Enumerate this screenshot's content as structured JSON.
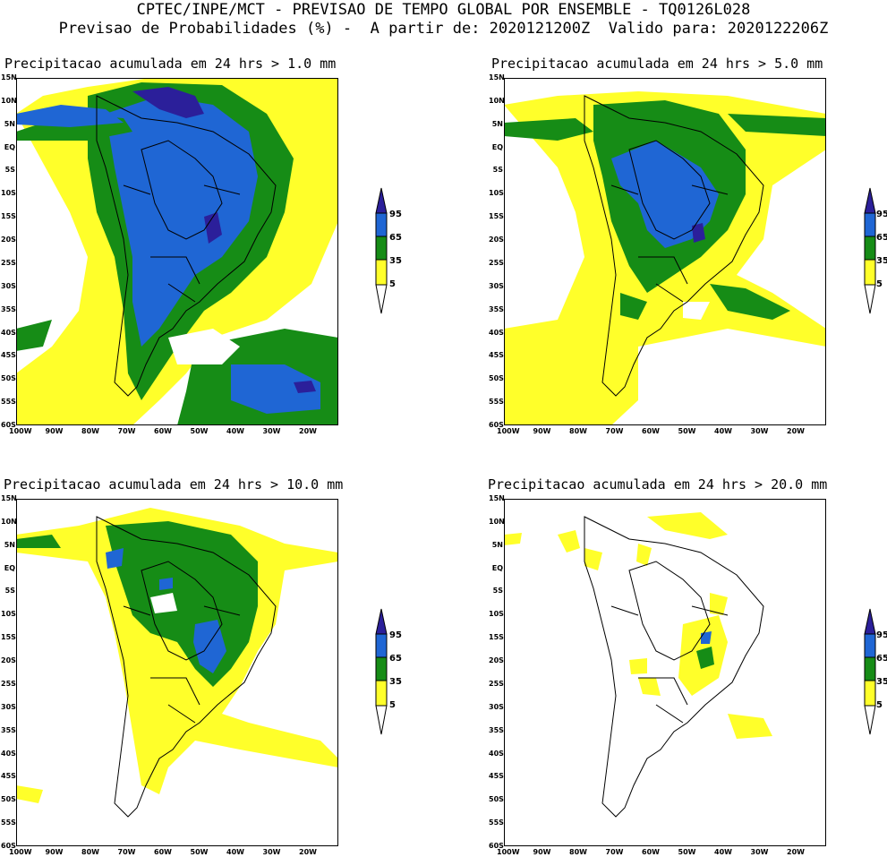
{
  "header": {
    "line1": "CPTEC/INPE/MCT - PREVISAO DE TEMPO GLOBAL POR ENSEMBLE - TQ0126L028",
    "line2": "Previsao de Probabilidades (%) -  A partir de: 2020121200Z  Valido para: 2020122206Z"
  },
  "panels": [
    {
      "title": "Precipitacao acumulada em 24 hrs > 1.0 mm"
    },
    {
      "title": "Precipitacao acumulada em 24 hrs > 5.0 mm"
    },
    {
      "title": "Precipitacao acumulada em 24 hrs > 10.0 mm"
    },
    {
      "title": "Precipitacao acumulada em 24 hrs > 20.0 mm"
    }
  ],
  "lat_labels": [
    "15N",
    "10N",
    "5N",
    "EQ",
    "5S",
    "10S",
    "15S",
    "20S",
    "25S",
    "30S",
    "35S",
    "40S",
    "45S",
    "50S",
    "55S",
    "60S"
  ],
  "lon_labels": [
    "100W",
    "90W",
    "80W",
    "70W",
    "60W",
    "50W",
    "40W",
    "30W",
    "20W"
  ],
  "colorbar": {
    "labels": [
      "95",
      "65",
      "35",
      "5"
    ],
    "colors": {
      "c95": "#2b1f9a",
      "c65": "#1f66d4",
      "c35": "#168c16",
      "c5": "#ffff2a"
    }
  }
}
